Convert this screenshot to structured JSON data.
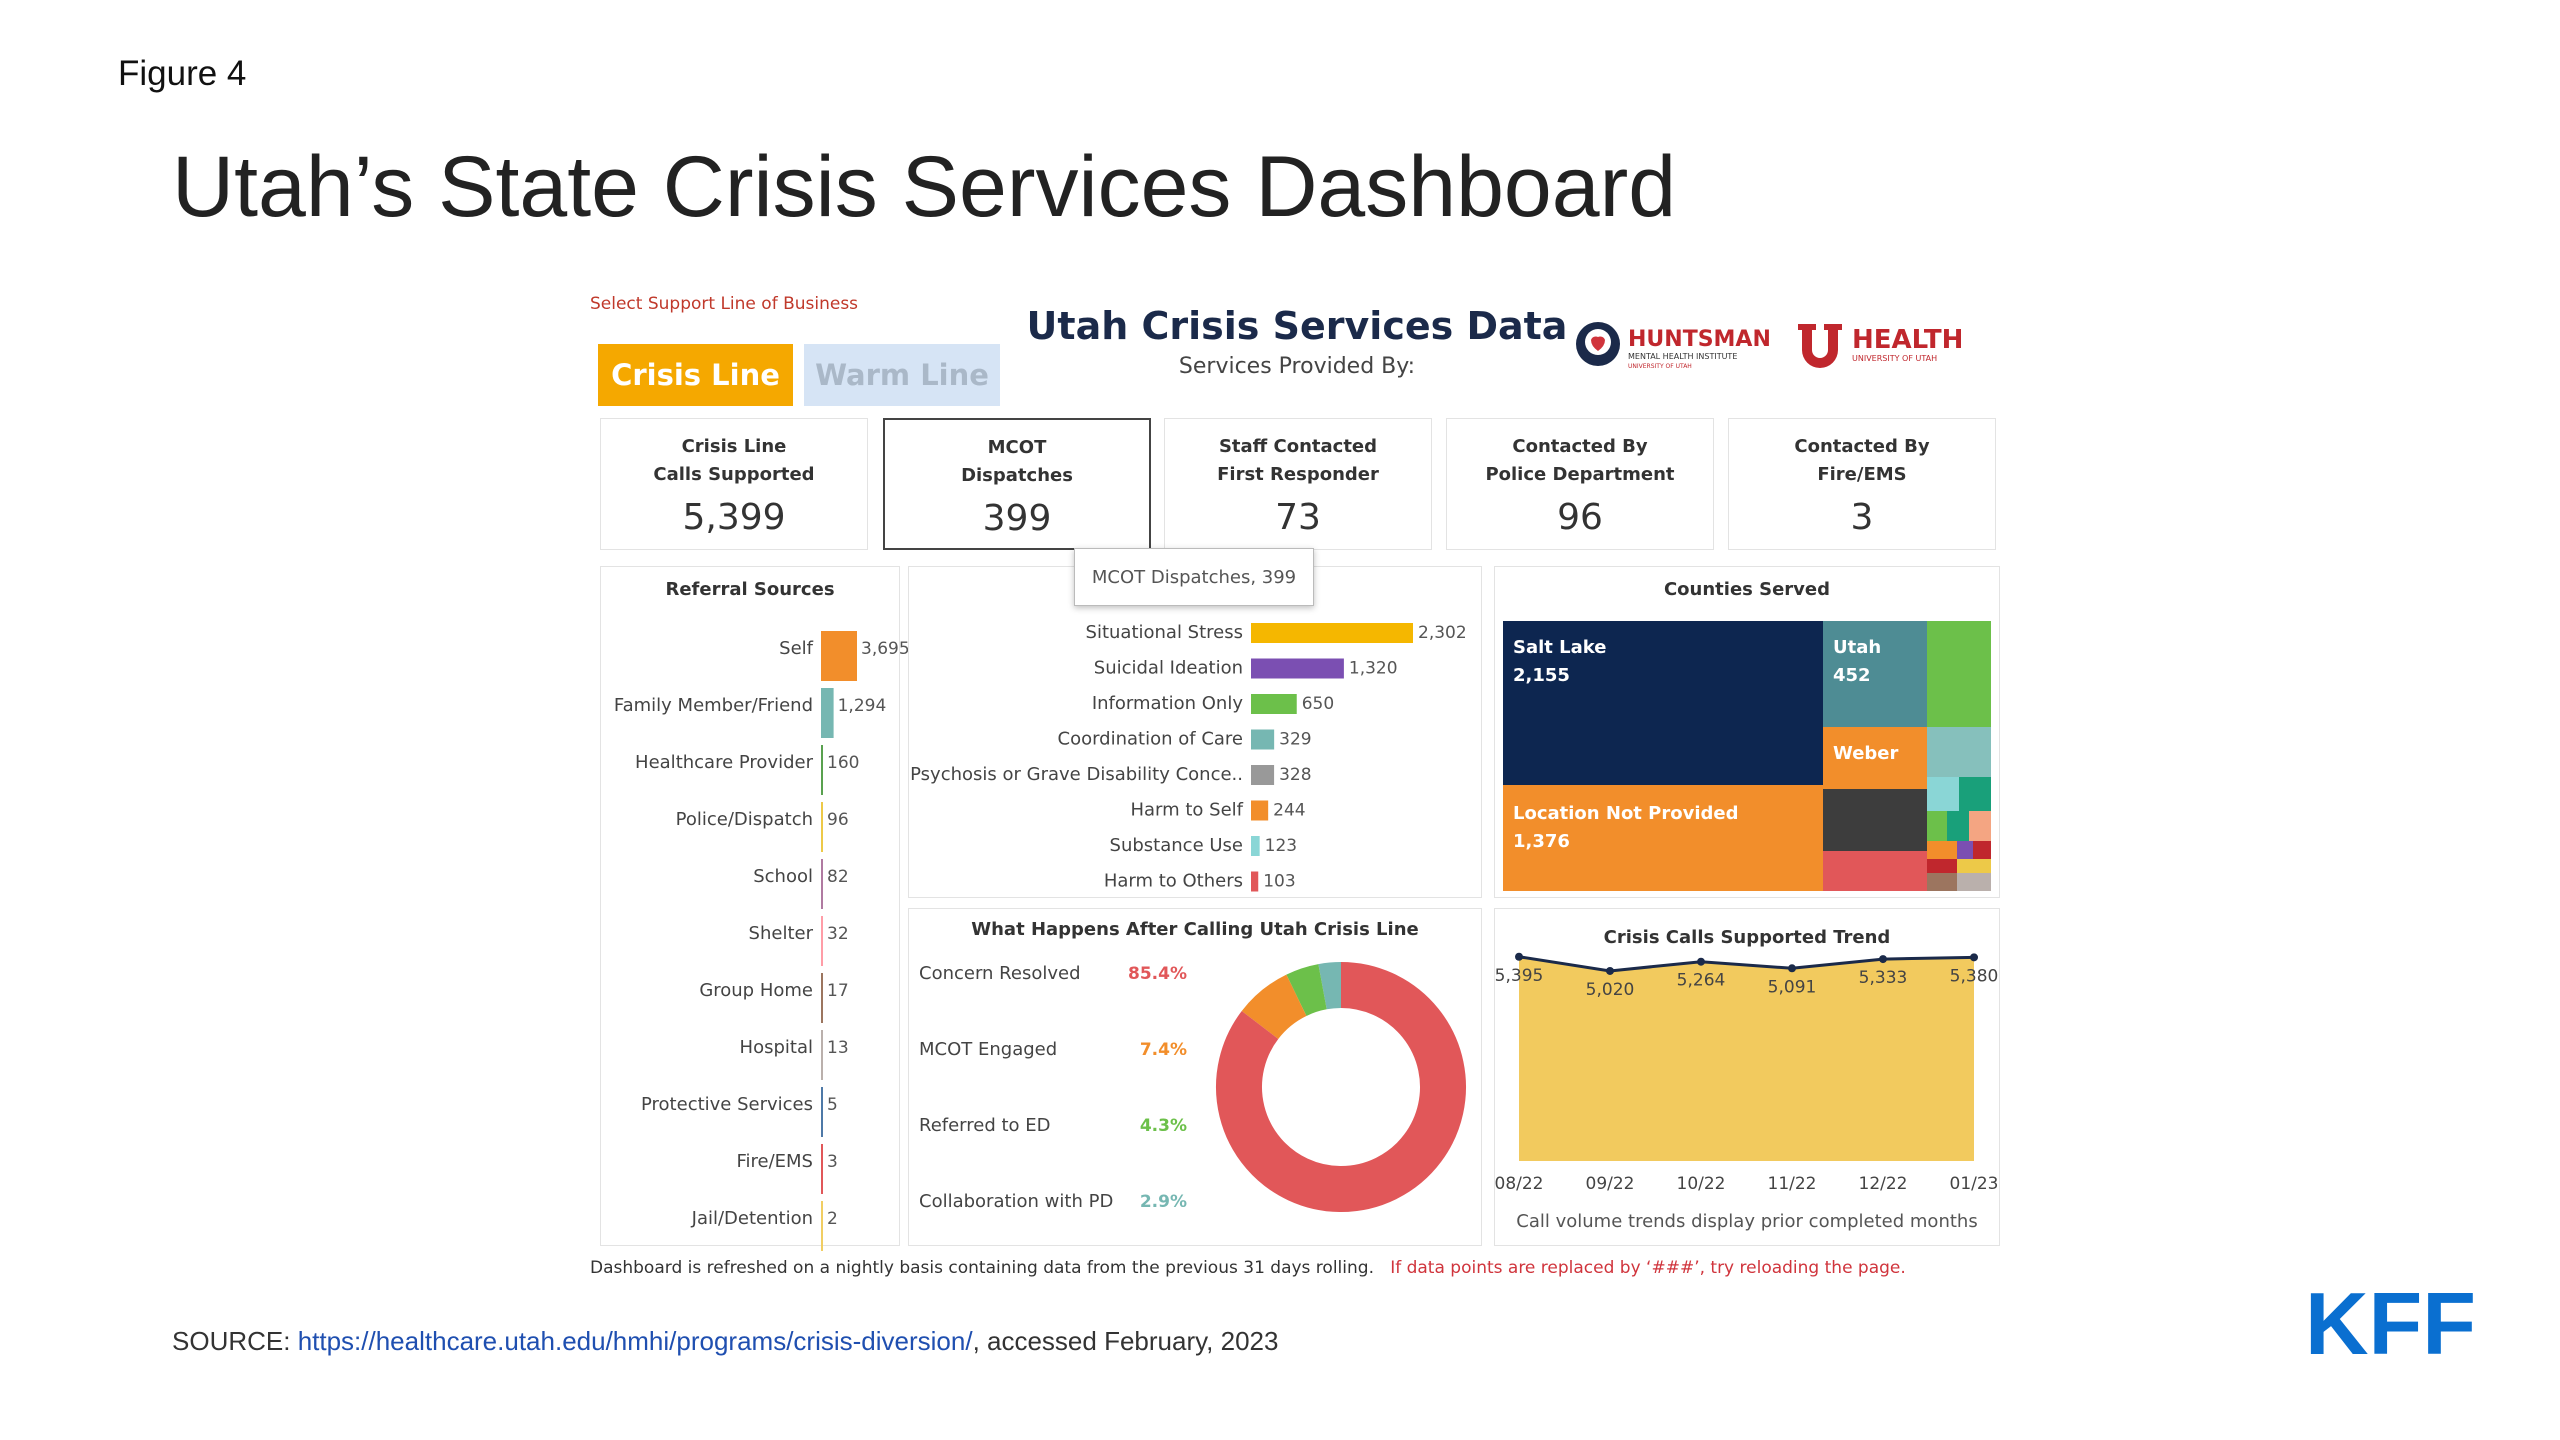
{
  "slide": {
    "figure_label": "Figure 4",
    "title": "Utah’s State Crisis Services Dashboard",
    "source_prefix": "SOURCE: ",
    "source_link": "https://healthcare.utah.edu/hmhi/programs/crisis-diversion/",
    "source_suffix": ", accessed February, 2023",
    "kff_logo": "KFF"
  },
  "dashboard": {
    "select_label": "Select Support Line of Business",
    "buttons": {
      "crisis": "Crisis Line",
      "warm": "Warm Line"
    },
    "title": "Utah Crisis Services Data",
    "subtitle": "Services Provided By:",
    "logos": {
      "huntsman": "HUNTSMAN",
      "huntsman_sub": "MENTAL HEALTH INSTITUTE",
      "huntsman_sub2": "UNIVERSITY OF UTAH",
      "uhealth": "HEALTH",
      "uhealth_sub": "UNIVERSITY OF UTAH"
    },
    "kpis": [
      {
        "label": "Crisis Line\nCalls Supported",
        "value": "5,399"
      },
      {
        "label": "MCOT\nDispatches",
        "value": "399"
      },
      {
        "label": "Staff Contacted\nFirst Responder",
        "value": "73"
      },
      {
        "label": "Contacted By\nPolice Department",
        "value": "96"
      },
      {
        "label": "Contacted By\nFire/EMS",
        "value": "3"
      }
    ],
    "tooltip": "MCOT Dispatches, 399",
    "footer_note": "Dashboard is refreshed on a nightly basis containing data from the previous 31 days rolling.",
    "footer_warn": "If data points are replaced by ‘###’, try reloading the page."
  },
  "chart_data": [
    {
      "type": "bar",
      "title": "Referral Sources",
      "categories": [
        "Self",
        "Family Member/Friend",
        "Healthcare Provider",
        "Police/Dispatch",
        "School",
        "Shelter",
        "Group Home",
        "Hospital",
        "Protective Services",
        "Fire/EMS",
        "Jail/Detention"
      ],
      "values": [
        3695,
        1294,
        160,
        96,
        82,
        32,
        17,
        13,
        5,
        3,
        2
      ],
      "value_labels": [
        "3,695",
        "1,294",
        "160",
        "96",
        "82",
        "32",
        "17",
        "13",
        "5",
        "3",
        "2"
      ],
      "colors": [
        "#f28e2b",
        "#76b7b2",
        "#59a14f",
        "#edc948",
        "#b07aa1",
        "#ff9da7",
        "#9c755f",
        "#bab0ac",
        "#4e79a7",
        "#e15759",
        "#f1ce63"
      ]
    },
    {
      "type": "bar",
      "title": "",
      "categories": [
        "Situational Stress",
        "Suicidal Ideation",
        "Information Only",
        "Coordination of Care",
        "Psychosis or Grave Disability Conce..",
        "Harm to Self",
        "Substance Use",
        "Harm to Others"
      ],
      "values": [
        2302,
        1320,
        650,
        329,
        328,
        244,
        123,
        103
      ],
      "value_labels": [
        "2,302",
        "1,320",
        "650",
        "329",
        "328",
        "244",
        "123",
        "103"
      ],
      "colors": [
        "#f5b700",
        "#7b4fb2",
        "#6cc04a",
        "#76b7b2",
        "#999999",
        "#f28e2b",
        "#8ad6d6",
        "#e15759"
      ]
    },
    {
      "type": "heatmap",
      "title": "Counties Served",
      "cells": [
        {
          "name": "Salt Lake",
          "value": "2,155",
          "color": "#0d2650"
        },
        {
          "name": "Utah",
          "value": "452",
          "color": "#4e8c94"
        },
        {
          "name": "Weber",
          "value": "",
          "color": "#f28e2b"
        },
        {
          "name": "Location Not Provided",
          "value": "1,376",
          "color": "#f28e2b"
        }
      ]
    },
    {
      "type": "pie",
      "title": "What Happens After Calling Utah Crisis Line",
      "categories": [
        "Concern Resolved",
        "MCOT Engaged",
        "Referred to ED",
        "Collaboration with PD"
      ],
      "values": [
        85.4,
        7.4,
        4.3,
        2.9
      ],
      "value_labels": [
        "85.4%",
        "7.4%",
        "4.3%",
        "2.9%"
      ],
      "colors": [
        "#e15759",
        "#f28e2b",
        "#6cc04a",
        "#76b7b2"
      ]
    },
    {
      "type": "area",
      "title": "Crisis Calls Supported Trend",
      "categories": [
        "08/22",
        "09/22",
        "10/22",
        "11/22",
        "12/22",
        "01/23"
      ],
      "values": [
        5395,
        5020,
        5264,
        5091,
        5333,
        5380
      ],
      "value_labels": [
        "5,395",
        "5,020",
        "5,264",
        "5,091",
        "5,333",
        "5,380"
      ],
      "note": "Call volume trends display prior completed months",
      "colors": {
        "area": "#f2ca5e",
        "line": "#1b2a4a"
      }
    }
  ]
}
